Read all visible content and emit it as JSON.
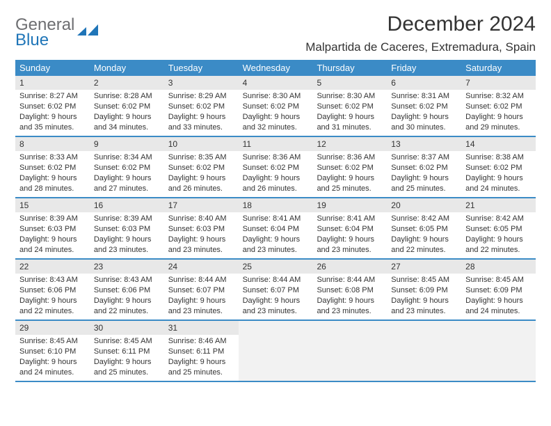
{
  "logo": {
    "general": "General",
    "blue": "Blue"
  },
  "title": "December 2024",
  "location": "Malpartida de Caceres, Extremadura, Spain",
  "colors": {
    "header_bar": "#3b8bc6",
    "daynum_bg": "#e8e8e8",
    "empty_bg": "#f2f2f2",
    "text": "#333333",
    "logo_gray": "#6d6e71",
    "logo_blue": "#1f75b8"
  },
  "weekdays": [
    "Sunday",
    "Monday",
    "Tuesday",
    "Wednesday",
    "Thursday",
    "Friday",
    "Saturday"
  ],
  "weeks": [
    [
      {
        "n": "1",
        "sr": "8:27 AM",
        "ss": "6:02 PM",
        "dl": "9 hours and 35 minutes."
      },
      {
        "n": "2",
        "sr": "8:28 AM",
        "ss": "6:02 PM",
        "dl": "9 hours and 34 minutes."
      },
      {
        "n": "3",
        "sr": "8:29 AM",
        "ss": "6:02 PM",
        "dl": "9 hours and 33 minutes."
      },
      {
        "n": "4",
        "sr": "8:30 AM",
        "ss": "6:02 PM",
        "dl": "9 hours and 32 minutes."
      },
      {
        "n": "5",
        "sr": "8:30 AM",
        "ss": "6:02 PM",
        "dl": "9 hours and 31 minutes."
      },
      {
        "n": "6",
        "sr": "8:31 AM",
        "ss": "6:02 PM",
        "dl": "9 hours and 30 minutes."
      },
      {
        "n": "7",
        "sr": "8:32 AM",
        "ss": "6:02 PM",
        "dl": "9 hours and 29 minutes."
      }
    ],
    [
      {
        "n": "8",
        "sr": "8:33 AM",
        "ss": "6:02 PM",
        "dl": "9 hours and 28 minutes."
      },
      {
        "n": "9",
        "sr": "8:34 AM",
        "ss": "6:02 PM",
        "dl": "9 hours and 27 minutes."
      },
      {
        "n": "10",
        "sr": "8:35 AM",
        "ss": "6:02 PM",
        "dl": "9 hours and 26 minutes."
      },
      {
        "n": "11",
        "sr": "8:36 AM",
        "ss": "6:02 PM",
        "dl": "9 hours and 26 minutes."
      },
      {
        "n": "12",
        "sr": "8:36 AM",
        "ss": "6:02 PM",
        "dl": "9 hours and 25 minutes."
      },
      {
        "n": "13",
        "sr": "8:37 AM",
        "ss": "6:02 PM",
        "dl": "9 hours and 25 minutes."
      },
      {
        "n": "14",
        "sr": "8:38 AM",
        "ss": "6:02 PM",
        "dl": "9 hours and 24 minutes."
      }
    ],
    [
      {
        "n": "15",
        "sr": "8:39 AM",
        "ss": "6:03 PM",
        "dl": "9 hours and 24 minutes."
      },
      {
        "n": "16",
        "sr": "8:39 AM",
        "ss": "6:03 PM",
        "dl": "9 hours and 23 minutes."
      },
      {
        "n": "17",
        "sr": "8:40 AM",
        "ss": "6:03 PM",
        "dl": "9 hours and 23 minutes."
      },
      {
        "n": "18",
        "sr": "8:41 AM",
        "ss": "6:04 PM",
        "dl": "9 hours and 23 minutes."
      },
      {
        "n": "19",
        "sr": "8:41 AM",
        "ss": "6:04 PM",
        "dl": "9 hours and 23 minutes."
      },
      {
        "n": "20",
        "sr": "8:42 AM",
        "ss": "6:05 PM",
        "dl": "9 hours and 22 minutes."
      },
      {
        "n": "21",
        "sr": "8:42 AM",
        "ss": "6:05 PM",
        "dl": "9 hours and 22 minutes."
      }
    ],
    [
      {
        "n": "22",
        "sr": "8:43 AM",
        "ss": "6:06 PM",
        "dl": "9 hours and 22 minutes."
      },
      {
        "n": "23",
        "sr": "8:43 AM",
        "ss": "6:06 PM",
        "dl": "9 hours and 22 minutes."
      },
      {
        "n": "24",
        "sr": "8:44 AM",
        "ss": "6:07 PM",
        "dl": "9 hours and 23 minutes."
      },
      {
        "n": "25",
        "sr": "8:44 AM",
        "ss": "6:07 PM",
        "dl": "9 hours and 23 minutes."
      },
      {
        "n": "26",
        "sr": "8:44 AM",
        "ss": "6:08 PM",
        "dl": "9 hours and 23 minutes."
      },
      {
        "n": "27",
        "sr": "8:45 AM",
        "ss": "6:09 PM",
        "dl": "9 hours and 23 minutes."
      },
      {
        "n": "28",
        "sr": "8:45 AM",
        "ss": "6:09 PM",
        "dl": "9 hours and 24 minutes."
      }
    ],
    [
      {
        "n": "29",
        "sr": "8:45 AM",
        "ss": "6:10 PM",
        "dl": "9 hours and 24 minutes."
      },
      {
        "n": "30",
        "sr": "8:45 AM",
        "ss": "6:11 PM",
        "dl": "9 hours and 25 minutes."
      },
      {
        "n": "31",
        "sr": "8:46 AM",
        "ss": "6:11 PM",
        "dl": "9 hours and 25 minutes."
      },
      null,
      null,
      null,
      null
    ]
  ],
  "labels": {
    "sunrise": "Sunrise:",
    "sunset": "Sunset:",
    "daylight": "Daylight:"
  }
}
